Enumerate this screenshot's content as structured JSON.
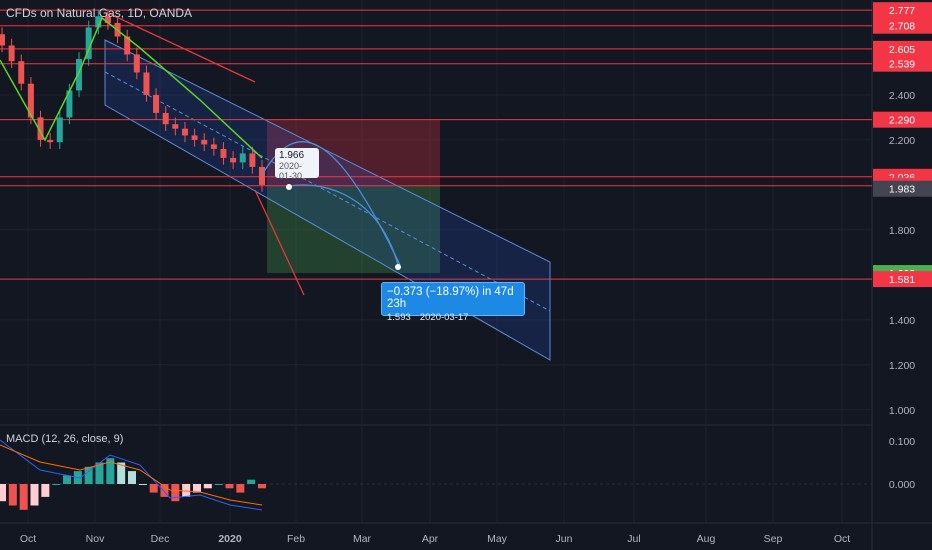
{
  "header": {
    "title": "CFDs on Natural Gas, 1D, OANDA",
    "macd_title": "MACD (12, 26, close, 9)"
  },
  "tooltip": {
    "price": "1.966",
    "date": "2020-01-30"
  },
  "measure": {
    "main": "−0.373 (−18.97%) in 47d 23h",
    "sub": "1.593    2020-03-17"
  },
  "colors": {
    "bg": "#131722",
    "up": "#26a69a",
    "down": "#ef5350",
    "grid": "#1e222d",
    "red_line": "#f23645"
  },
  "chart_data": [
    {
      "type": "candlestick",
      "title": "CFDs on Natural Gas, 1D, OANDA",
      "x_ticks": [
        "Oct",
        "Nov",
        "Dec",
        "2020",
        "Feb",
        "Mar",
        "Apr",
        "May",
        "Jun",
        "Jul",
        "Aug",
        "Sep",
        "Oct"
      ],
      "y_ticks": [
        "2.400",
        "2.200",
        "1.800",
        "1.400",
        "1.200",
        "1.000"
      ],
      "ylim": [
        0.91,
        2.8
      ],
      "horizontal_levels": [
        {
          "value": "2.777",
          "label_color": "#f23645"
        },
        {
          "value": "2.708",
          "label_color": "#f23645"
        },
        {
          "value": "2.605",
          "label_color": "#f23645"
        },
        {
          "value": "2.539",
          "label_color": "#f23645"
        },
        {
          "value": "2.290",
          "label_color": "#f23645"
        },
        {
          "value": "2.036",
          "label_color": "#f23645"
        },
        {
          "value": "1.996",
          "label_color": "#f23645"
        },
        {
          "value": "1.983",
          "label_color": "#434651"
        },
        {
          "value": "1.608",
          "label_color": "#4caf50"
        },
        {
          "value": "1.581",
          "label_color": "#f23645"
        }
      ],
      "series_close_approx": [
        2.62,
        2.55,
        2.45,
        2.3,
        2.2,
        2.19,
        2.3,
        2.42,
        2.56,
        2.7,
        2.75,
        2.72,
        2.66,
        2.58,
        2.5,
        2.4,
        2.32,
        2.27,
        2.25,
        2.22,
        2.2,
        2.18,
        2.16,
        2.12,
        2.1,
        2.14,
        2.08,
        2.0
      ],
      "x_range": [
        "Oct",
        "Jan 2020"
      ]
    },
    {
      "type": "bar",
      "title": "MACD (12, 26, close, 9)",
      "y_ticks": [
        "0.100",
        "0.000"
      ],
      "histogram": [
        -0.04,
        -0.05,
        -0.06,
        -0.05,
        -0.03,
        0.0,
        0.02,
        0.03,
        0.04,
        0.05,
        0.06,
        0.05,
        0.03,
        0.0,
        -0.02,
        -0.03,
        -0.04,
        -0.03,
        -0.02,
        -0.01,
        0.0,
        -0.01,
        -0.02,
        0.01,
        -0.01
      ]
    }
  ]
}
